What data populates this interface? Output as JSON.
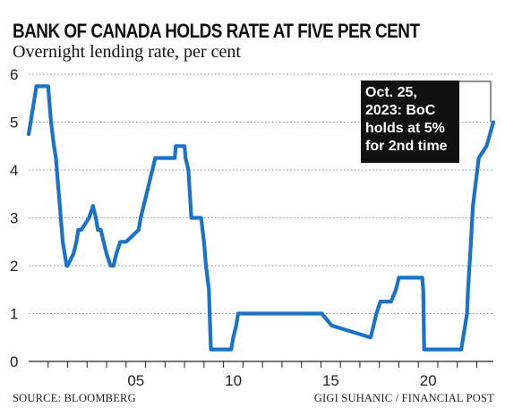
{
  "chart_data": {
    "type": "line",
    "title": "BANK OF CANADA HOLDS RATE AT FIVE PER CENT",
    "subtitle": "Overnight lending rate, per cent",
    "xlabel": "",
    "ylabel": "",
    "xlim": [
      2000.0,
      2023.85
    ],
    "ylim": [
      0,
      6
    ],
    "yticks": [
      "0",
      "1",
      "2",
      "3",
      "4",
      "5",
      "6"
    ],
    "xticks": [
      {
        "value": 2005.0,
        "label": "05"
      },
      {
        "value": 2010.0,
        "label": "10"
      },
      {
        "value": 2015.0,
        "label": "15"
      },
      {
        "value": 2020.0,
        "label": "20"
      }
    ],
    "grid": "horizontal dotted",
    "series_color": "#1a73c8",
    "series": [
      {
        "x": [
          2000.0,
          2000.1,
          2000.2,
          2000.3,
          2000.4,
          2001.0,
          2001.05,
          2001.15,
          2001.3,
          2001.4,
          2001.5,
          2001.6,
          2001.75,
          2001.85,
          2001.95,
          2002.0,
          2002.3,
          2002.45,
          2002.55,
          2002.7,
          2003.1,
          2003.3,
          2003.45,
          2003.55,
          2003.7,
          2003.85,
          2004.0,
          2004.2,
          2004.35,
          2004.5,
          2004.7,
          2005.0,
          2005.65,
          2005.75,
          2005.9,
          2006.05,
          2006.2,
          2006.35,
          2006.5,
          2006.6,
          2006.7,
          2006.8,
          2007.5,
          2007.55,
          2008.0,
          2008.05,
          2008.2,
          2008.35,
          2008.85,
          2009.0,
          2009.1,
          2009.25,
          2009.35,
          2010.4,
          2010.5,
          2010.65,
          2010.75,
          2015.05,
          2015.55,
          2017.55,
          2017.7,
          2017.85,
          2018.05,
          2018.6,
          2018.85,
          2019.0,
          2019.3,
          2020.2,
          2020.25,
          2020.3,
          2022.2,
          2022.3,
          2022.5,
          2022.55,
          2022.7,
          2022.8,
          2022.95,
          2023.1,
          2023.5,
          2023.85
        ],
        "y": [
          4.75,
          5.0,
          5.25,
          5.5,
          5.75,
          5.75,
          5.5,
          5.0,
          4.5,
          4.25,
          3.75,
          3.25,
          2.5,
          2.25,
          2.0,
          2.0,
          2.25,
          2.5,
          2.75,
          2.75,
          3.0,
          3.25,
          3.0,
          2.75,
          2.75,
          2.5,
          2.25,
          2.0,
          2.0,
          2.25,
          2.5,
          2.5,
          2.75,
          3.0,
          3.25,
          3.5,
          3.75,
          4.0,
          4.25,
          4.25,
          4.25,
          4.25,
          4.25,
          4.5,
          4.5,
          4.25,
          4.0,
          3.0,
          3.0,
          2.5,
          2.0,
          1.5,
          0.25,
          0.25,
          0.5,
          0.75,
          1.0,
          1.0,
          0.75,
          0.5,
          0.75,
          1.0,
          1.25,
          1.25,
          1.5,
          1.75,
          1.75,
          1.75,
          1.5,
          0.25,
          0.25,
          0.5,
          1.0,
          1.5,
          2.5,
          3.25,
          3.75,
          4.25,
          4.5,
          5.0
        ]
      }
    ],
    "annotation": {
      "lines": [
        "Oct. 25,",
        "2023: BoC",
        "holds at 5%",
        "for 2nd time"
      ],
      "points_to": {
        "x": 2023.85,
        "y": 5.0
      }
    }
  },
  "source": "SOURCE: BLOOMBERG",
  "credit": "GIGI SUHANIC / FINANCIAL POST"
}
